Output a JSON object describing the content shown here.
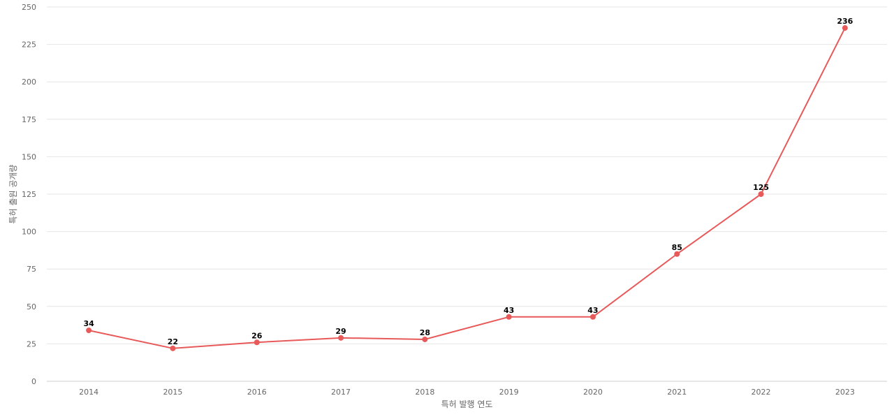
{
  "chart_data": {
    "type": "line",
    "title": "",
    "xlabel": "특허 발행 연도",
    "ylabel": "특허 출원 공개량",
    "categories": [
      "2014",
      "2015",
      "2016",
      "2017",
      "2018",
      "2019",
      "2020",
      "2021",
      "2022",
      "2023"
    ],
    "series": [
      {
        "values": [
          34,
          22,
          26,
          29,
          28,
          43,
          43,
          85,
          125,
          236
        ],
        "color": "#e8595a"
      }
    ],
    "ylim": [
      0,
      250
    ],
    "yticks": [
      "0",
      "25",
      "50",
      "75",
      "100",
      "125",
      "150",
      "175",
      "200",
      "225",
      "250"
    ],
    "grid": true,
    "legend": "none"
  }
}
